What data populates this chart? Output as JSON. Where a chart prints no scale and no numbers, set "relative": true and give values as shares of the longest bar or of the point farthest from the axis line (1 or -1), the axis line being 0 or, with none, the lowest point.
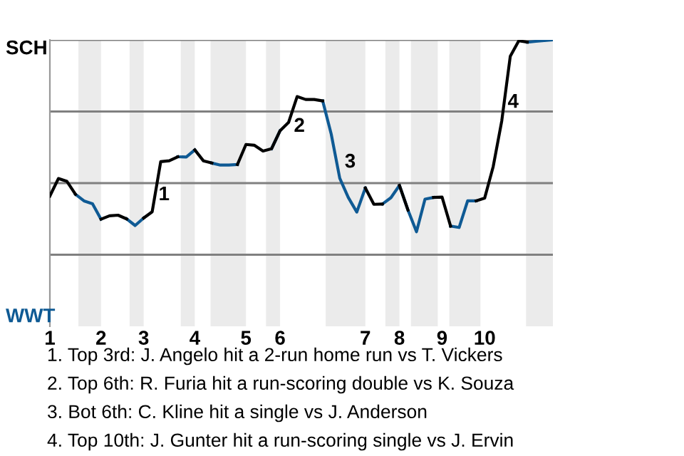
{
  "chart_data": {
    "type": "line",
    "relative": true,
    "categories": [
      "1",
      null,
      null,
      null,
      null,
      null,
      "2",
      null,
      null,
      null,
      null,
      "3",
      null,
      null,
      null,
      null,
      null,
      "4",
      null,
      null,
      null,
      null,
      null,
      "5",
      null,
      null,
      null,
      "6",
      null,
      null,
      null,
      null,
      null,
      null,
      null,
      null,
      null,
      "7",
      null,
      null,
      null,
      "8",
      null,
      null,
      null,
      null,
      "9",
      null,
      null,
      null,
      null,
      "10",
      null,
      null,
      null,
      null,
      null,
      null,
      null,
      null
    ],
    "series": [
      {
        "name": "SCH",
        "color": "#000000",
        "values": [
          0.455,
          0.516,
          0.506,
          0.461,
          null,
          null,
          0.374,
          0.386,
          0.388,
          0.375,
          null,
          0.378,
          0.4,
          0.575,
          0.578,
          0.592,
          null,
          0.616,
          0.578,
          0.57,
          null,
          null,
          0.565,
          0.635,
          0.632,
          0.612,
          0.62,
          0.683,
          0.712,
          0.802,
          0.792,
          0.792,
          0.787,
          null,
          null,
          null,
          null,
          0.483,
          0.426,
          0.427,
          null,
          0.492,
          0.406,
          null,
          null,
          0.45,
          0.451,
          0.35,
          null,
          null,
          0.438,
          0.448,
          0.558,
          0.717,
          0.943,
          0.997,
          0.992,
          null,
          null,
          null
        ]
      },
      {
        "name": "WWT",
        "color": "#0f5a94",
        "values": [
          null,
          null,
          null,
          0.461,
          0.438,
          0.428,
          0.374,
          null,
          null,
          0.375,
          0.352,
          0.378,
          null,
          null,
          null,
          0.592,
          0.591,
          0.616,
          null,
          0.57,
          0.563,
          0.563,
          0.565,
          null,
          null,
          null,
          0.62,
          0.683,
          null,
          null,
          null,
          null,
          0.787,
          0.671,
          0.517,
          0.45,
          0.399,
          0.483,
          null,
          0.427,
          0.449,
          0.492,
          0.406,
          0.33,
          0.444,
          0.45,
          null,
          0.35,
          0.345,
          0.438,
          0.438,
          null,
          null,
          null,
          null,
          null,
          0.992,
          0.995,
          0.998,
          1.0
        ]
      }
    ],
    "grid": "y",
    "annotations": [
      "1",
      "2",
      "3",
      "4",
      "1. Top 3rd: J. Angelo hit a 2-run home run vs T. Vickers",
      "2. Top 6th: R. Furia hit a run-scoring double vs K. Souza",
      "3. Bot 6th: C. Kline hit a single vs J. Anderson",
      "4. Top 10th: J. Gunter hit a run-scoring single vs J. Ervin"
    ],
    "marker": "none",
    "line_style": "solid"
  }
}
